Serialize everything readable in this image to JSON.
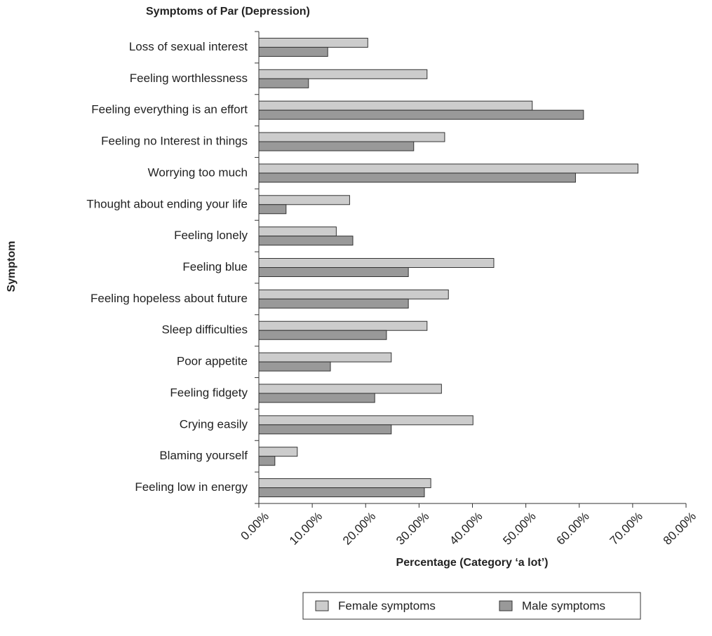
{
  "chart_data": {
    "type": "bar",
    "orientation": "horizontal",
    "title": "Symptoms of Par (Depression)",
    "x_label": "Percentage (Category ‘a lot’)",
    "y_label": "Symptom",
    "categories": [
      "Loss of sexual interest",
      "Feeling worthlessness",
      "Feeling everything is an effort",
      "Feeling no Interest in things",
      "Worrying too much",
      "Thought about ending your life",
      "Feeling lonely",
      "Feeling blue",
      "Feeling hopeless about future",
      "Sleep difficulties",
      "Poor appetite",
      "Feeling fidgety",
      "Crying easily",
      "Blaming yourself",
      "Feeling low in energy"
    ],
    "series": [
      {
        "name": "Female symptoms",
        "color": "#cccccc",
        "values": [
          20.4,
          31.5,
          51.2,
          34.8,
          71.0,
          17.0,
          14.5,
          44.0,
          35.5,
          31.5,
          24.8,
          34.2,
          40.1,
          7.2,
          32.2
        ]
      },
      {
        "name": "Male symptoms",
        "color": "#999999",
        "values": [
          12.9,
          9.3,
          60.8,
          29.0,
          59.3,
          5.1,
          17.6,
          28.0,
          28.0,
          23.9,
          13.4,
          21.7,
          24.8,
          3.0,
          31.0
        ]
      }
    ],
    "xlim": [
      0,
      80
    ],
    "xticks": [
      {
        "value": 0,
        "label": "0.00%"
      },
      {
        "value": 10,
        "label": "10.00%"
      },
      {
        "value": 20,
        "label": "20.00%"
      },
      {
        "value": 30,
        "label": "30.00%"
      },
      {
        "value": 40,
        "label": "40.00%"
      },
      {
        "value": 50,
        "label": "50.00%"
      },
      {
        "value": 60,
        "label": "60.00%"
      },
      {
        "value": 70,
        "label": "70.00%"
      },
      {
        "value": 80,
        "label": "80.00%"
      }
    ],
    "grid": false,
    "legend": "bottom"
  }
}
